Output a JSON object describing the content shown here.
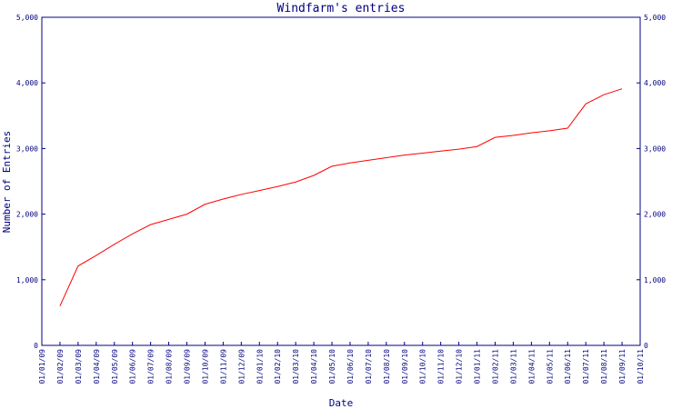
{
  "chart_data": {
    "type": "line",
    "title": "Windfarm's entries",
    "x_label": "Date",
    "y_label": "Number of Entries",
    "categories": [
      "01/01/09",
      "01/02/09",
      "01/03/09",
      "01/04/09",
      "01/05/09",
      "01/06/09",
      "01/07/09",
      "01/08/09",
      "01/09/09",
      "01/10/09",
      "01/11/09",
      "01/12/09",
      "01/01/10",
      "01/02/10",
      "01/03/10",
      "01/04/10",
      "01/05/10",
      "01/06/10",
      "01/07/10",
      "01/08/10",
      "01/09/10",
      "01/10/10",
      "01/11/10",
      "01/12/10",
      "01/01/11",
      "01/02/11",
      "01/03/11",
      "01/04/11",
      "01/05/11",
      "01/06/11",
      "01/07/11",
      "01/08/11",
      "01/09/11",
      "01/10/11"
    ],
    "series": [
      {
        "name": "Entries",
        "color": "#ff0000",
        "values": [
          null,
          600,
          1210,
          1370,
          1540,
          1700,
          1840,
          1920,
          2000,
          2150,
          2230,
          2300,
          2360,
          2420,
          2490,
          2590,
          2730,
          2780,
          2820,
          2860,
          2900,
          2930,
          2960,
          2990,
          3030,
          3170,
          3200,
          3240,
          3270,
          3310,
          3680,
          3820,
          3910,
          null
        ]
      }
    ],
    "ylim": [
      0,
      5000
    ],
    "yticks": [
      0,
      {
        "value": 1000,
        "label": "1,000"
      },
      {
        "value": 2000,
        "label": "2,000"
      },
      {
        "value": 3000,
        "label": "3,000"
      },
      {
        "value": 4000,
        "label": "4,000"
      },
      {
        "value": 5000,
        "label": "5,000"
      }
    ],
    "y2lim": [
      0,
      5000
    ],
    "y2ticks": [
      0,
      {
        "value": 1000,
        "label": "1,000"
      },
      {
        "value": 2000,
        "label": "2,000"
      },
      {
        "value": 3000,
        "label": "3,000"
      },
      {
        "value": 4000,
        "label": "4,000"
      },
      {
        "value": 5000,
        "label": "5,000"
      }
    ],
    "grid": false
  }
}
